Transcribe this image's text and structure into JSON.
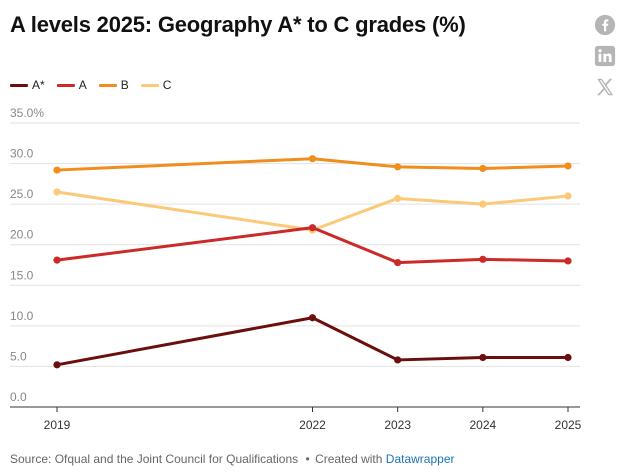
{
  "title": "A levels 2025: Geography A* to C grades (%)",
  "share": {
    "facebook_icon": "facebook-icon",
    "linkedin_icon": "linkedin-icon",
    "x_icon": "x-icon"
  },
  "footer": {
    "source": "Source: Ofqual and the Joint Council for Qualifications",
    "separator": "•",
    "created_with": "Created with",
    "brand": "Datawrapper"
  },
  "colors": {
    "A*": "#6b0e0e",
    "A": "#cc2a2a",
    "B": "#f08d1c",
    "C": "#fbc978"
  },
  "chart_data": {
    "type": "line",
    "title": "A levels 2025: Geography A* to C grades (%)",
    "x": [
      2019,
      2022,
      2023,
      2024,
      2025
    ],
    "x_tick_labels": [
      "2019",
      "2022",
      "2023",
      "2024",
      "2025"
    ],
    "y_tick_labels": [
      "0.0",
      "5.0",
      "10.0",
      "15.0",
      "20.0",
      "25.0",
      "30.0",
      "35.0%"
    ],
    "ylim": [
      0,
      35
    ],
    "grid": true,
    "legend_position": "top-left",
    "series": [
      {
        "name": "A*",
        "values": [
          5.2,
          11.0,
          5.8,
          6.1,
          6.1
        ]
      },
      {
        "name": "A",
        "values": [
          18.1,
          22.1,
          17.8,
          18.2,
          18.0
        ]
      },
      {
        "name": "B",
        "values": [
          29.2,
          30.6,
          29.6,
          29.4,
          29.7
        ]
      },
      {
        "name": "C",
        "values": [
          26.5,
          21.8,
          25.7,
          25.0,
          26.0
        ]
      }
    ]
  }
}
